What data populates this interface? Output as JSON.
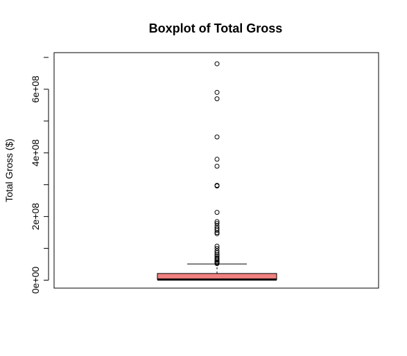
{
  "chart_data": {
    "type": "boxplot",
    "title": "Boxplot of Total Gross",
    "xlabel": "",
    "ylabel": "Total Gross ($)",
    "ylim": [
      -25000000,
      715000000
    ],
    "yticks": [
      0,
      200000000,
      400000000,
      600000000
    ],
    "ytick_labels": [
      "0e+00",
      "2e+08",
      "4e+08",
      "6e+08"
    ],
    "grid": false,
    "box": {
      "min": 0,
      "q1": 2000000,
      "median": 2000000,
      "q3": 21000000,
      "whisker_high": 51000000
    },
    "outliers": [
      680000000,
      590000000,
      570000000,
      450000000,
      380000000,
      358000000,
      298000000,
      296000000,
      213000000,
      184000000,
      178000000,
      170000000,
      163000000,
      157000000,
      150000000,
      146000000,
      107000000,
      100000000,
      92000000,
      86000000,
      80000000,
      75000000,
      70000000,
      66000000,
      62000000,
      58000000,
      55000000,
      52000000
    ],
    "colors": {
      "box_fill": "#f08080",
      "stroke": "#000000"
    }
  }
}
